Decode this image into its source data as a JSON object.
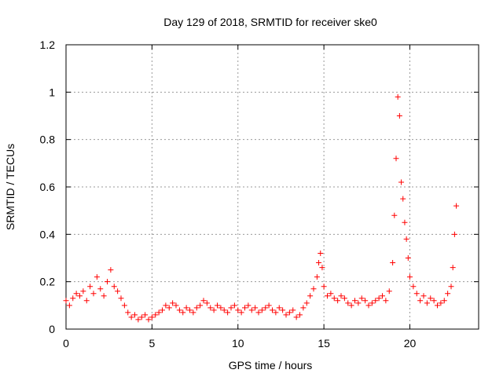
{
  "chart_data": {
    "type": "scatter",
    "title": "Day 129 of 2018, SRMTID for receiver ske0",
    "xlabel": "GPS time / hours",
    "ylabel": "SRMTID / TECUs",
    "xlim": [
      0,
      24
    ],
    "ylim": [
      0,
      1.2
    ],
    "xticks": [
      0,
      5,
      10,
      15,
      20
    ],
    "xtick_labels": [
      "0",
      "5",
      "10",
      "15",
      "20"
    ],
    "yticks": [
      0,
      0.2,
      0.4,
      0.6,
      0.8,
      1.0,
      1.2
    ],
    "ytick_labels": [
      "0",
      "0.2",
      "0.4",
      "0.6",
      "0.8",
      "1",
      "1.2"
    ],
    "grid": true,
    "marker": "+",
    "color": "#ff0000",
    "series": [
      {
        "name": "SRMTID (ske0)",
        "x": [
          0.0,
          0.2,
          0.4,
          0.6,
          0.8,
          1.0,
          1.2,
          1.4,
          1.6,
          1.8,
          2.0,
          2.2,
          2.4,
          2.6,
          2.8,
          3.0,
          3.2,
          3.4,
          3.6,
          3.8,
          4.0,
          4.2,
          4.4,
          4.6,
          4.8,
          5.0,
          5.2,
          5.4,
          5.6,
          5.8,
          6.0,
          6.2,
          6.4,
          6.6,
          6.8,
          7.0,
          7.2,
          7.4,
          7.6,
          7.8,
          8.0,
          8.2,
          8.4,
          8.6,
          8.8,
          9.0,
          9.2,
          9.4,
          9.6,
          9.8,
          10.0,
          10.2,
          10.4,
          10.6,
          10.8,
          11.0,
          11.2,
          11.4,
          11.6,
          11.8,
          12.0,
          12.2,
          12.4,
          12.6,
          12.8,
          13.0,
          13.2,
          13.4,
          13.6,
          13.8,
          14.0,
          14.2,
          14.4,
          14.6,
          14.7,
          14.8,
          14.9,
          15.0,
          15.2,
          15.4,
          15.6,
          15.8,
          16.0,
          16.2,
          16.4,
          16.6,
          16.8,
          17.0,
          17.2,
          17.4,
          17.6,
          17.8,
          18.0,
          18.2,
          18.4,
          18.6,
          18.8,
          19.0,
          19.1,
          19.2,
          19.3,
          19.4,
          19.5,
          19.6,
          19.7,
          19.8,
          19.9,
          20.0,
          20.2,
          20.4,
          20.6,
          20.8,
          21.0,
          21.2,
          21.4,
          21.6,
          21.8,
          22.0,
          22.2,
          22.4,
          22.5,
          22.6,
          22.7
        ],
        "y": [
          0.12,
          0.1,
          0.13,
          0.15,
          0.14,
          0.16,
          0.12,
          0.18,
          0.15,
          0.22,
          0.17,
          0.14,
          0.2,
          0.25,
          0.18,
          0.16,
          0.13,
          0.1,
          0.07,
          0.05,
          0.06,
          0.04,
          0.05,
          0.06,
          0.04,
          0.05,
          0.06,
          0.07,
          0.08,
          0.1,
          0.09,
          0.11,
          0.1,
          0.08,
          0.07,
          0.09,
          0.08,
          0.07,
          0.09,
          0.1,
          0.12,
          0.11,
          0.09,
          0.08,
          0.1,
          0.09,
          0.08,
          0.07,
          0.09,
          0.1,
          0.08,
          0.07,
          0.09,
          0.1,
          0.08,
          0.09,
          0.07,
          0.08,
          0.09,
          0.1,
          0.08,
          0.07,
          0.09,
          0.08,
          0.06,
          0.07,
          0.08,
          0.05,
          0.06,
          0.09,
          0.11,
          0.14,
          0.17,
          0.22,
          0.28,
          0.32,
          0.26,
          0.18,
          0.14,
          0.15,
          0.13,
          0.12,
          0.14,
          0.13,
          0.11,
          0.1,
          0.12,
          0.11,
          0.13,
          0.12,
          0.1,
          0.11,
          0.12,
          0.13,
          0.14,
          0.12,
          0.16,
          0.28,
          0.48,
          0.72,
          0.98,
          0.9,
          0.62,
          0.55,
          0.45,
          0.38,
          0.3,
          0.22,
          0.18,
          0.15,
          0.12,
          0.14,
          0.11,
          0.13,
          0.12,
          0.1,
          0.11,
          0.12,
          0.15,
          0.18,
          0.26,
          0.4,
          0.52
        ]
      }
    ]
  }
}
